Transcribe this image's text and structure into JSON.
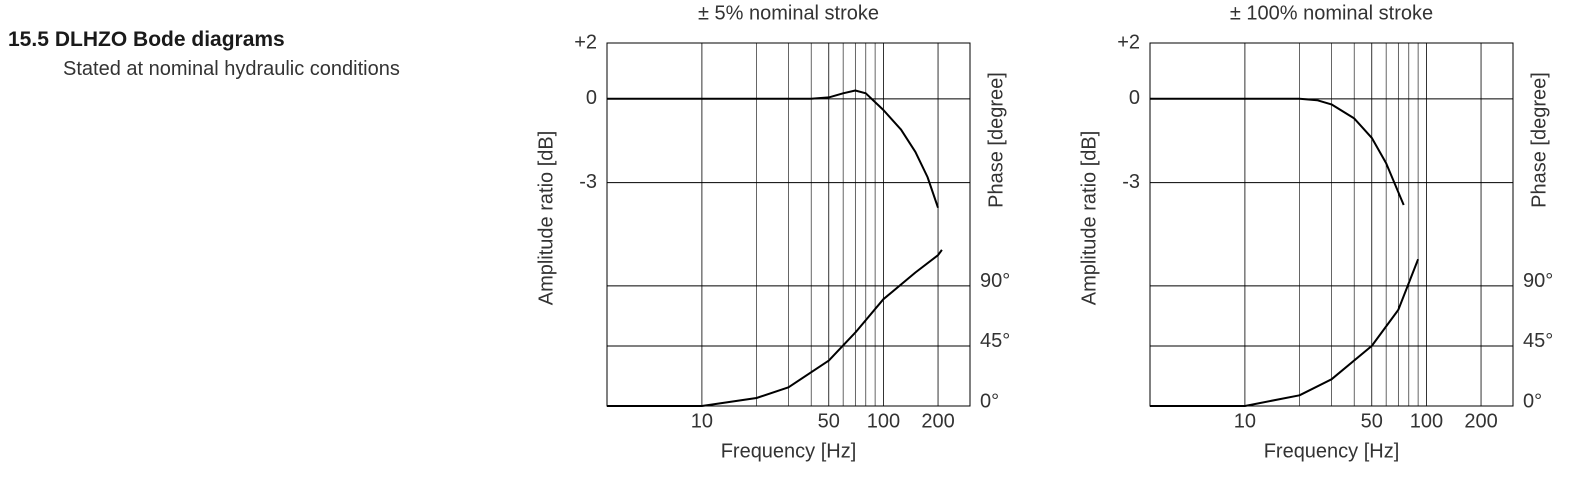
{
  "section": {
    "number": "15.5",
    "title": "DLHZO Bode diagrams",
    "subtitle": "Stated at nominal hydraulic conditions"
  },
  "chart_data": [
    {
      "type": "line",
      "title": "± 5% nominal stroke",
      "xlabel": "Frequency [Hz]",
      "ylabel": "Amplitude ratio  [dB]",
      "y2label": "Phase [degree]",
      "xscale": "log",
      "grid": true,
      "xlim": [
        3,
        300
      ],
      "xticks": [
        10,
        50,
        100,
        200
      ],
      "xminor": [
        20,
        30,
        40,
        60,
        70,
        80,
        90
      ],
      "ylim": [
        -11,
        2
      ],
      "yticks": [
        {
          "value": 2,
          "label": "+2"
        },
        0,
        -3
      ],
      "y2lim": [
        0,
        272
      ],
      "y2ticks": [
        {
          "value": 90,
          "label": "90°"
        },
        {
          "value": 45,
          "label": "45°"
        },
        {
          "value": 0,
          "label": "0°"
        }
      ],
      "series": [
        {
          "axis": "y",
          "color": "#000000",
          "x": [
            3,
            10,
            20,
            30,
            40,
            50,
            60,
            70,
            80,
            100,
            125,
            150,
            175,
            200
          ],
          "values": [
            0,
            0,
            0,
            0,
            0,
            0.05,
            0.2,
            0.3,
            0.2,
            -0.4,
            -1.1,
            -1.9,
            -2.8,
            -3.9
          ]
        },
        {
          "axis": "y2",
          "color": "#000000",
          "x": [
            3,
            10,
            20,
            30,
            50,
            70,
            100,
            150,
            200,
            210
          ],
          "values": [
            0,
            0,
            6,
            14,
            34,
            55,
            80,
            100,
            113,
            117
          ]
        }
      ]
    },
    {
      "type": "line",
      "title": "± 100% nominal stroke",
      "xlabel": "Frequency [Hz]",
      "ylabel": "Amplitude ratio  [dB]",
      "y2label": "Phase [degree]",
      "xscale": "log",
      "grid": true,
      "xlim": [
        3,
        300
      ],
      "xticks": [
        10,
        50,
        100,
        200
      ],
      "xminor": [
        20,
        30,
        40,
        60,
        70,
        80,
        90
      ],
      "ylim": [
        -11,
        2
      ],
      "yticks": [
        {
          "value": 2,
          "label": "+2"
        },
        0,
        -3
      ],
      "y2lim": [
        0,
        272
      ],
      "y2ticks": [
        {
          "value": 90,
          "label": "90°"
        },
        {
          "value": 45,
          "label": "45°"
        },
        {
          "value": 0,
          "label": "0°"
        }
      ],
      "series": [
        {
          "axis": "y",
          "color": "#000000",
          "x": [
            3,
            10,
            20,
            25,
            30,
            40,
            50,
            60,
            75
          ],
          "values": [
            0,
            0,
            0,
            -0.05,
            -0.2,
            -0.7,
            -1.4,
            -2.3,
            -3.8
          ]
        },
        {
          "axis": "y2",
          "color": "#000000",
          "x": [
            3,
            10,
            20,
            30,
            50,
            70,
            90
          ],
          "values": [
            0,
            0,
            8,
            20,
            45,
            72,
            110
          ]
        }
      ]
    }
  ]
}
